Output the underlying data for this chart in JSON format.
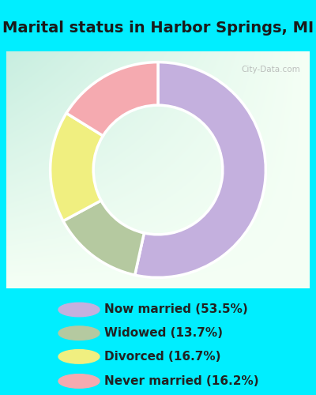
{
  "title": "Marital status in Harbor Springs, MI",
  "slices": [
    53.5,
    13.7,
    16.7,
    16.2
  ],
  "labels": [
    "Now married (53.5%)",
    "Widowed (13.7%)",
    "Divorced (16.7%)",
    "Never married (16.2%)"
  ],
  "colors": [
    "#c4b0de",
    "#b5c9a0",
    "#f0ef80",
    "#f5aab0"
  ],
  "outer_bg": "#00eeff",
  "chart_bg_tl": "#c8eee0",
  "chart_bg_br": "#f0f8f0",
  "donut_width": 0.4,
  "start_angle": 90,
  "watermark": "City-Data.com",
  "title_fontsize": 14,
  "legend_fontsize": 11
}
